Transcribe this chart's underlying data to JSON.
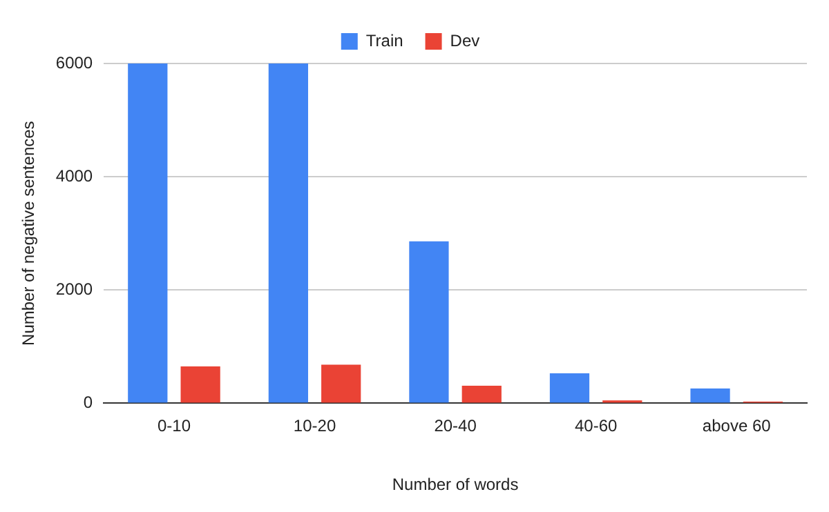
{
  "chart_data": {
    "type": "bar",
    "xlabel": "Number of words",
    "ylabel": "Number of negative sentences",
    "categories": [
      "0-10",
      "10-20",
      "20-40",
      "40-60",
      "above 60"
    ],
    "series": [
      {
        "name": "Train",
        "color": "#4285f4",
        "values": [
          6000,
          6000,
          2860,
          530,
          260
        ]
      },
      {
        "name": "Dev",
        "color": "#ea4335",
        "values": [
          650,
          680,
          310,
          50,
          30
        ]
      }
    ],
    "ylim": [
      0,
      6000
    ],
    "yticks": [
      0,
      2000,
      4000,
      6000
    ],
    "grid": "y",
    "legend": "top"
  }
}
